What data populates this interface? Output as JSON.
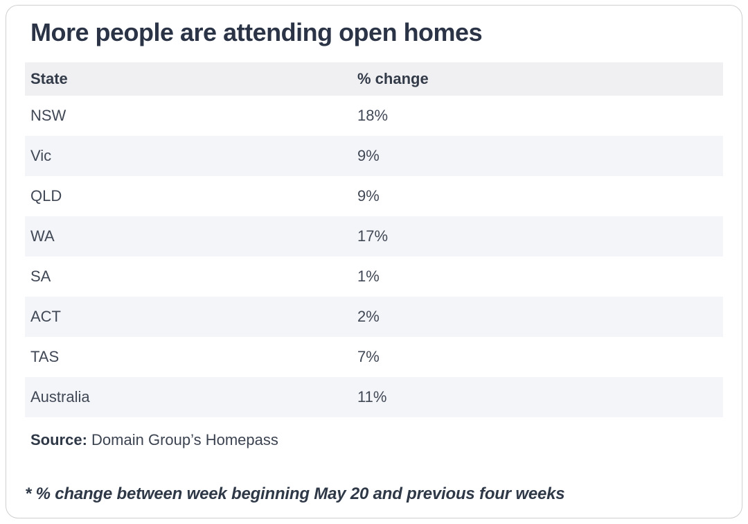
{
  "card": {
    "title": "More people are attending open homes",
    "table": {
      "columns": {
        "state": "State",
        "change": "% change"
      },
      "rows": [
        {
          "state": "NSW",
          "change": "18%"
        },
        {
          "state": "Vic",
          "change": "9%"
        },
        {
          "state": "QLD",
          "change": "9%"
        },
        {
          "state": "WA",
          "change": "17%"
        },
        {
          "state": "SA",
          "change": "1%"
        },
        {
          "state": "ACT",
          "change": "2%"
        },
        {
          "state": "TAS",
          "change": "7%"
        },
        {
          "state": "Australia",
          "change": "11%"
        }
      ]
    },
    "source": {
      "label": "Source:",
      "text": " Domain Group’s Homepass"
    },
    "footnote": "* % change between week beginning May 20 and previous four weeks"
  },
  "chart_data": {
    "type": "table",
    "title": "More people are attending open homes",
    "columns": [
      "State",
      "% change"
    ],
    "categories": [
      "NSW",
      "Vic",
      "QLD",
      "WA",
      "SA",
      "ACT",
      "TAS",
      "Australia"
    ],
    "values": [
      18,
      9,
      9,
      17,
      1,
      2,
      7,
      11
    ],
    "unit": "%",
    "source": "Domain Group’s Homepass",
    "footnote": "* % change between week beginning May 20 and previous four weeks",
    "layout": {
      "zebra_striping": true,
      "header_background": "#f0f0f3",
      "row_alt_background": "#f4f5f9"
    }
  },
  "colors": {
    "title_text": "#2b3447",
    "cell_text": "#414855",
    "header_background": "#f0f0f3",
    "row_alt_background": "#f4f5f9",
    "card_border": "#cfcfcf",
    "card_background": "#ffffff"
  }
}
